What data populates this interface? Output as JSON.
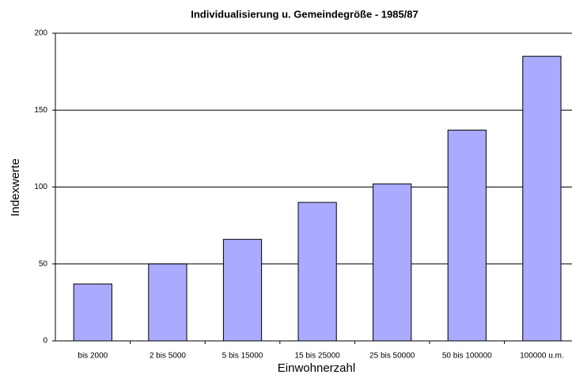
{
  "chart_data": {
    "type": "bar",
    "title": "Individualisierung u. Gemeindegröße - 1985/87",
    "x_label": "Einwohnerzahl",
    "y_label": "Indexwerte",
    "categories": [
      "bis 2000",
      "2 bis 5000",
      "5 bis 15000",
      "15 bis 25000",
      "25 bis 50000",
      "50 bis 100000",
      "100000 u.m."
    ],
    "values": [
      37,
      50,
      66,
      90,
      102,
      137,
      185
    ],
    "color": "#aaaaff",
    "ylim": [
      0,
      200
    ],
    "yticks": [
      0,
      50,
      100,
      150,
      200
    ],
    "grid": true
  }
}
